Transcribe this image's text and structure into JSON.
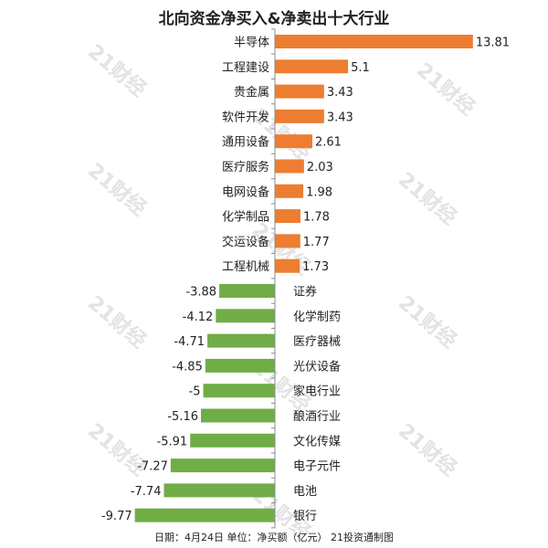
{
  "footnote": "日期：4月24日 单位：净买额（亿元） 21投资通制图",
  "watermark_text": "21财经",
  "colors": {
    "positive": "#ED7D31",
    "negative": "#70AD47",
    "axis": "#8c8c8c",
    "text": "#222222"
  },
  "chart_data": {
    "type": "bar",
    "orientation": "horizontal",
    "title": "北向资金净买入&净卖出十大行业",
    "xlabel": "",
    "ylabel": "",
    "xlim": [
      -9.77,
      13.81
    ],
    "grid": false,
    "legend": "none",
    "categories": [
      "半导体",
      "工程建设",
      "贵金属",
      "软件开发",
      "通用设备",
      "医疗服务",
      "电网设备",
      "化学制品",
      "交运设备",
      "工程机械",
      "证券",
      "化学制药",
      "医疗器械",
      "光伏设备",
      "家电行业",
      "酿酒行业",
      "文化传媒",
      "电子元件",
      "电池",
      "银行"
    ],
    "values": [
      13.81,
      5.1,
      3.43,
      3.43,
      2.61,
      2.03,
      1.98,
      1.78,
      1.77,
      1.73,
      -3.88,
      -4.12,
      -4.71,
      -4.85,
      -5,
      -5.16,
      -5.91,
      -7.27,
      -7.74,
      -9.77
    ],
    "value_labels": [
      "13.81",
      "5.1",
      "3.43",
      "3.43",
      "2.61",
      "2.03",
      "1.98",
      "1.78",
      "1.77",
      "1.73",
      "-3.88",
      "-4.12",
      "-4.71",
      "-4.85",
      "-5",
      "-5.16",
      "-5.91",
      "-7.27",
      "-7.74",
      "-9.77"
    ]
  }
}
